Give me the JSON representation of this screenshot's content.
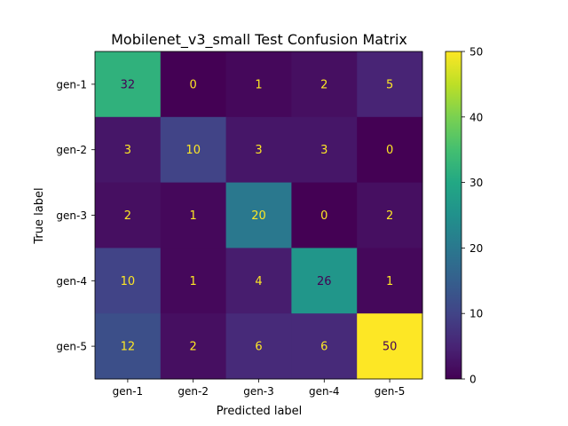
{
  "chart_data": {
    "type": "heatmap",
    "title": "Mobilenet_v3_small Test Confusion Matrix",
    "xlabel": "Predicted label",
    "ylabel": "True label",
    "x_categories": [
      "gen-1",
      "gen-2",
      "gen-3",
      "gen-4",
      "gen-5"
    ],
    "y_categories": [
      "gen-1",
      "gen-2",
      "gen-3",
      "gen-4",
      "gen-5"
    ],
    "values": [
      [
        32,
        0,
        1,
        2,
        5
      ],
      [
        3,
        10,
        3,
        3,
        0
      ],
      [
        2,
        1,
        20,
        0,
        2
      ],
      [
        10,
        1,
        4,
        26,
        1
      ],
      [
        12,
        2,
        6,
        6,
        50
      ]
    ],
    "colormap": "viridis",
    "colorbar": {
      "range": [
        0,
        50
      ],
      "ticks": [
        0,
        10,
        20,
        30,
        40,
        50
      ]
    },
    "cell_text_colors": {
      "on_dark": "#fde725",
      "on_light": "#440154"
    }
  }
}
